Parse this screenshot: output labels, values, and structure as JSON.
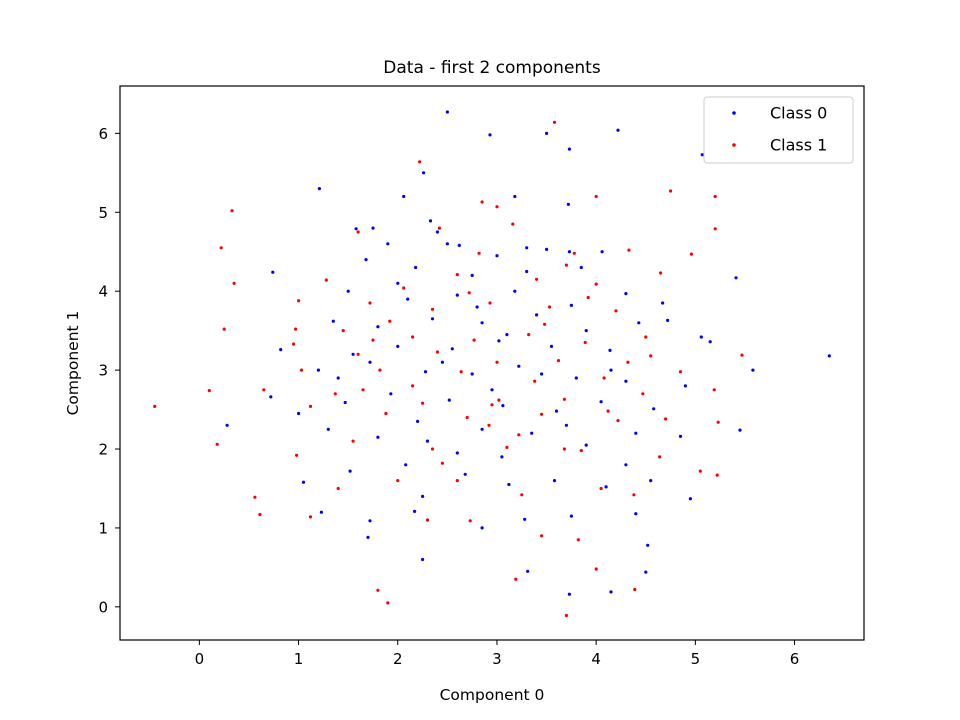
{
  "chart_data": {
    "type": "scatter",
    "title": "Data - first 2 components",
    "xlabel": "Component 0",
    "ylabel": "Component 1",
    "xlim": [
      -0.8,
      6.7
    ],
    "ylim": [
      -0.42,
      6.6
    ],
    "xticks": [
      0,
      1,
      2,
      3,
      4,
      5,
      6
    ],
    "yticks": [
      0,
      1,
      2,
      3,
      4,
      5,
      6
    ],
    "grid": false,
    "legend_position": "top-right",
    "series": [
      {
        "name": "Class 0",
        "color": "#0000ff",
        "points": [
          [
            2.5,
            6.27
          ],
          [
            2.93,
            5.98
          ],
          [
            3.5,
            6.0
          ],
          [
            4.22,
            6.04
          ],
          [
            3.73,
            5.8
          ],
          [
            5.07,
            5.73
          ],
          [
            1.21,
            5.3
          ],
          [
            2.26,
            5.5
          ],
          [
            2.06,
            5.2
          ],
          [
            3.18,
            5.2
          ],
          [
            3.72,
            5.1
          ],
          [
            2.62,
            4.58
          ],
          [
            2.33,
            4.89
          ],
          [
            1.58,
            4.79
          ],
          [
            1.75,
            4.8
          ],
          [
            1.9,
            4.6
          ],
          [
            2.5,
            4.6
          ],
          [
            3.0,
            4.45
          ],
          [
            3.5,
            4.53
          ],
          [
            3.73,
            4.5
          ],
          [
            4.06,
            4.5
          ],
          [
            0.74,
            4.24
          ],
          [
            1.68,
            4.4
          ],
          [
            2.18,
            4.3
          ],
          [
            2.75,
            4.2
          ],
          [
            3.3,
            4.25
          ],
          [
            3.85,
            4.3
          ],
          [
            5.41,
            4.17
          ],
          [
            1.5,
            4.0
          ],
          [
            2.1,
            3.9
          ],
          [
            2.6,
            3.95
          ],
          [
            3.18,
            4.0
          ],
          [
            3.75,
            3.82
          ],
          [
            4.3,
            3.97
          ],
          [
            4.67,
            3.85
          ],
          [
            1.35,
            3.62
          ],
          [
            1.8,
            3.55
          ],
          [
            2.35,
            3.65
          ],
          [
            2.85,
            3.6
          ],
          [
            3.4,
            3.7
          ],
          [
            3.9,
            3.5
          ],
          [
            4.43,
            3.6
          ],
          [
            4.72,
            3.63
          ],
          [
            0.82,
            3.26
          ],
          [
            1.55,
            3.2
          ],
          [
            2.0,
            3.3
          ],
          [
            2.55,
            3.27
          ],
          [
            3.02,
            3.37
          ],
          [
            3.55,
            3.3
          ],
          [
            4.14,
            3.25
          ],
          [
            5.06,
            3.42
          ],
          [
            5.15,
            3.36
          ],
          [
            6.35,
            3.18
          ],
          [
            1.2,
            3.0
          ],
          [
            1.72,
            3.1
          ],
          [
            2.28,
            2.98
          ],
          [
            2.75,
            2.95
          ],
          [
            3.22,
            3.05
          ],
          [
            3.8,
            2.9
          ],
          [
            4.3,
            2.86
          ],
          [
            4.9,
            2.8
          ],
          [
            5.58,
            3.0
          ],
          [
            0.72,
            2.66
          ],
          [
            1.0,
            2.45
          ],
          [
            1.47,
            2.59
          ],
          [
            1.93,
            2.7
          ],
          [
            2.52,
            2.62
          ],
          [
            3.06,
            2.55
          ],
          [
            3.6,
            2.48
          ],
          [
            4.05,
            2.6
          ],
          [
            4.58,
            2.51
          ],
          [
            5.45,
            2.24
          ],
          [
            0.28,
            2.3
          ],
          [
            1.3,
            2.25
          ],
          [
            1.8,
            2.15
          ],
          [
            2.3,
            2.1
          ],
          [
            2.85,
            2.25
          ],
          [
            3.35,
            2.2
          ],
          [
            3.9,
            2.05
          ],
          [
            4.4,
            2.2
          ],
          [
            4.85,
            2.16
          ],
          [
            1.05,
            1.58
          ],
          [
            1.52,
            1.72
          ],
          [
            2.08,
            1.8
          ],
          [
            2.68,
            1.68
          ],
          [
            3.12,
            1.55
          ],
          [
            3.58,
            1.6
          ],
          [
            4.1,
            1.52
          ],
          [
            4.55,
            1.6
          ],
          [
            4.95,
            1.37
          ],
          [
            1.23,
            1.2
          ],
          [
            1.72,
            1.09
          ],
          [
            2.17,
            1.21
          ],
          [
            2.85,
            1.0
          ],
          [
            3.28,
            1.11
          ],
          [
            3.75,
            1.15
          ],
          [
            4.4,
            1.18
          ],
          [
            1.7,
            0.88
          ],
          [
            2.25,
            0.6
          ],
          [
            3.31,
            0.45
          ],
          [
            4.52,
            0.78
          ],
          [
            4.5,
            0.44
          ],
          [
            3.73,
            0.16
          ],
          [
            4.15,
            0.19
          ],
          [
            2.4,
            4.75
          ],
          [
            3.3,
            4.55
          ],
          [
            2.0,
            4.1
          ],
          [
            2.8,
            3.8
          ],
          [
            3.1,
            3.45
          ],
          [
            2.45,
            3.1
          ],
          [
            3.45,
            2.95
          ],
          [
            2.95,
            2.75
          ],
          [
            2.2,
            2.35
          ],
          [
            3.7,
            2.3
          ],
          [
            2.6,
            1.95
          ],
          [
            3.05,
            1.9
          ],
          [
            4.15,
            3.0
          ],
          [
            1.4,
            2.9
          ],
          [
            4.3,
            1.8
          ],
          [
            2.25,
            1.4
          ]
        ]
      },
      {
        "name": "Class 1",
        "color": "#ff0000",
        "points": [
          [
            3.58,
            6.14
          ],
          [
            2.22,
            5.64
          ],
          [
            0.33,
            5.02
          ],
          [
            4.75,
            5.27
          ],
          [
            4.0,
            5.2
          ],
          [
            5.2,
            5.2
          ],
          [
            2.85,
            5.13
          ],
          [
            3.0,
            5.07
          ],
          [
            0.22,
            4.55
          ],
          [
            1.6,
            4.75
          ],
          [
            2.42,
            4.8
          ],
          [
            3.16,
            4.85
          ],
          [
            3.7,
            4.33
          ],
          [
            5.2,
            4.79
          ],
          [
            4.33,
            4.52
          ],
          [
            0.35,
            4.1
          ],
          [
            1.28,
            4.14
          ],
          [
            2.06,
            4.04
          ],
          [
            2.6,
            4.21
          ],
          [
            3.4,
            4.15
          ],
          [
            4.0,
            4.09
          ],
          [
            4.65,
            4.23
          ],
          [
            4.96,
            4.47
          ],
          [
            1.0,
            3.88
          ],
          [
            1.72,
            3.85
          ],
          [
            2.35,
            3.77
          ],
          [
            2.93,
            3.85
          ],
          [
            3.53,
            3.8
          ],
          [
            4.2,
            3.75
          ],
          [
            0.25,
            3.52
          ],
          [
            0.97,
            3.52
          ],
          [
            1.45,
            3.5
          ],
          [
            2.15,
            3.42
          ],
          [
            2.77,
            3.38
          ],
          [
            3.32,
            3.45
          ],
          [
            3.89,
            3.35
          ],
          [
            4.5,
            3.42
          ],
          [
            0.95,
            3.33
          ],
          [
            1.6,
            3.2
          ],
          [
            2.4,
            3.23
          ],
          [
            3.0,
            3.1
          ],
          [
            3.62,
            3.12
          ],
          [
            4.32,
            3.1
          ],
          [
            5.47,
            3.19
          ],
          [
            1.03,
            3.0
          ],
          [
            1.82,
            3.0
          ],
          [
            2.64,
            2.98
          ],
          [
            3.38,
            2.86
          ],
          [
            4.08,
            2.9
          ],
          [
            4.85,
            2.98
          ],
          [
            0.1,
            2.74
          ],
          [
            0.65,
            2.75
          ],
          [
            1.37,
            2.7
          ],
          [
            2.15,
            2.8
          ],
          [
            2.95,
            2.56
          ],
          [
            3.68,
            2.63
          ],
          [
            4.47,
            2.7
          ],
          [
            5.19,
            2.75
          ],
          [
            -0.45,
            2.54
          ],
          [
            1.12,
            2.54
          ],
          [
            1.88,
            2.45
          ],
          [
            2.7,
            2.4
          ],
          [
            3.45,
            2.44
          ],
          [
            4.22,
            2.36
          ],
          [
            4.7,
            2.38
          ],
          [
            5.23,
            2.34
          ],
          [
            0.18,
            2.06
          ],
          [
            0.98,
            1.92
          ],
          [
            1.55,
            2.1
          ],
          [
            2.35,
            2.0
          ],
          [
            3.1,
            2.02
          ],
          [
            3.85,
            1.98
          ],
          [
            4.64,
            1.9
          ],
          [
            5.05,
            1.72
          ],
          [
            5.22,
            1.67
          ],
          [
            1.4,
            1.5
          ],
          [
            2.0,
            1.6
          ],
          [
            2.6,
            1.6
          ],
          [
            3.25,
            1.42
          ],
          [
            4.05,
            1.5
          ],
          [
            4.38,
            1.42
          ],
          [
            0.56,
            1.39
          ],
          [
            0.61,
            1.17
          ],
          [
            1.12,
            1.14
          ],
          [
            2.3,
            1.1
          ],
          [
            2.73,
            1.09
          ],
          [
            3.45,
            0.9
          ],
          [
            3.82,
            0.85
          ],
          [
            1.8,
            0.21
          ],
          [
            1.9,
            0.05
          ],
          [
            3.19,
            0.35
          ],
          [
            4.39,
            0.22
          ],
          [
            3.7,
            -0.11
          ],
          [
            4.0,
            0.48
          ],
          [
            2.72,
            3.98
          ],
          [
            3.78,
            4.48
          ],
          [
            1.92,
            3.62
          ],
          [
            3.48,
            3.58
          ],
          [
            2.25,
            2.58
          ],
          [
            2.92,
            2.3
          ],
          [
            3.22,
            2.18
          ],
          [
            3.68,
            2.0
          ],
          [
            1.65,
            2.75
          ],
          [
            4.55,
            3.18
          ],
          [
            2.45,
            1.82
          ],
          [
            3.02,
            2.62
          ],
          [
            4.12,
            2.48
          ],
          [
            1.75,
            3.38
          ],
          [
            2.82,
            4.48
          ],
          [
            3.92,
            3.92
          ]
        ]
      }
    ]
  }
}
